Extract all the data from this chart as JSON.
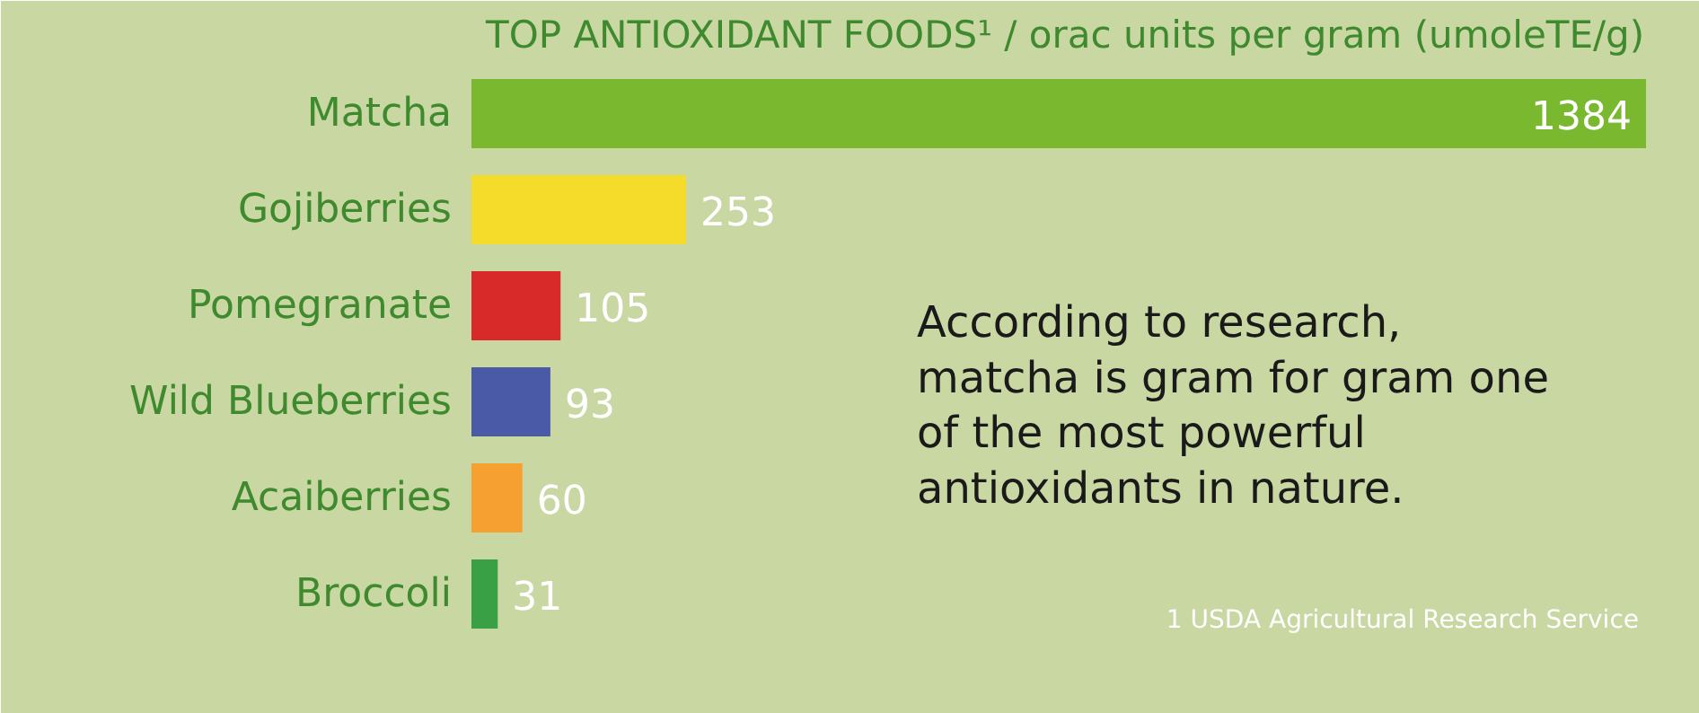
{
  "chart_data": {
    "type": "bar",
    "orientation": "horizontal",
    "title": "TOP ANTIOXIDANT FOODS¹ / orac units per gram (umoleTE/g)",
    "categories": [
      "Matcha",
      "Gojiberries",
      "Pomegranate",
      "Wild Blueberries",
      "Acaiberries",
      "Broccoli"
    ],
    "values": [
      1384,
      253,
      105,
      93,
      60,
      31
    ],
    "colors": [
      "#7ab830",
      "#f6dc2a",
      "#d92a2a",
      "#4a5aa6",
      "#f7a032",
      "#3aa046"
    ],
    "data_labels": true,
    "grid": false,
    "annotations": [
      "According to research,\nmatcha is gram for gram one\nof the most powerful\nantioxidants in nature.",
      "1 USDA Agricultural Research Service"
    ]
  }
}
